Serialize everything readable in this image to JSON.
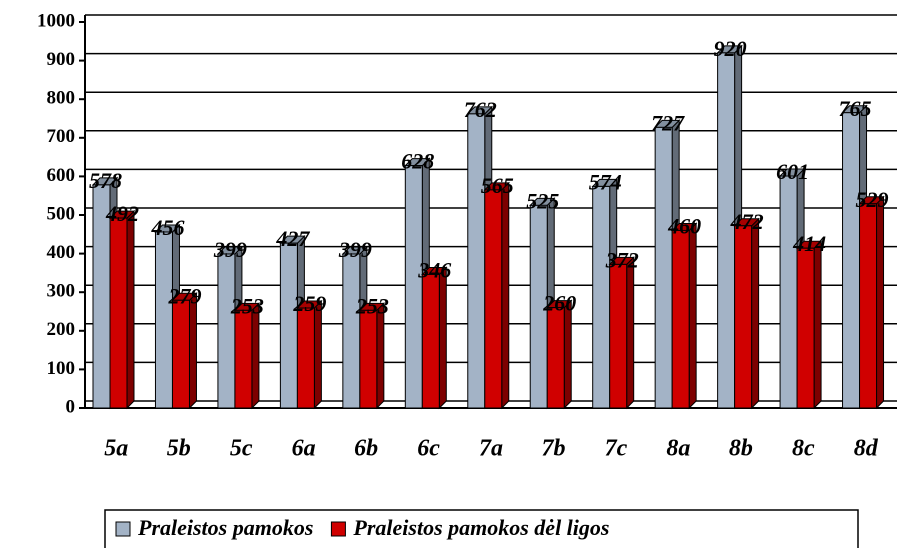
{
  "chart_data": {
    "type": "bar",
    "categories": [
      "5a",
      "5b",
      "5c",
      "6a",
      "6b",
      "6c",
      "7a",
      "7b",
      "7c",
      "8a",
      "8b",
      "8c",
      "8d"
    ],
    "series": [
      {
        "name": "Praleistos pamokos",
        "color": "#a3b3c6",
        "values": [
          578,
          456,
          399,
          427,
          399,
          628,
          762,
          525,
          574,
          727,
          920,
          601,
          765
        ]
      },
      {
        "name": "Praleistos pamokos dėl ligos",
        "color": "#d00000",
        "values": [
          492,
          279,
          253,
          259,
          253,
          346,
          565,
          260,
          372,
          460,
          472,
          414,
          529
        ]
      }
    ],
    "ylim": [
      0,
      1000
    ],
    "yticks": [
      0,
      100,
      200,
      300,
      400,
      500,
      600,
      700,
      800,
      900,
      1000
    ],
    "grid": true
  }
}
